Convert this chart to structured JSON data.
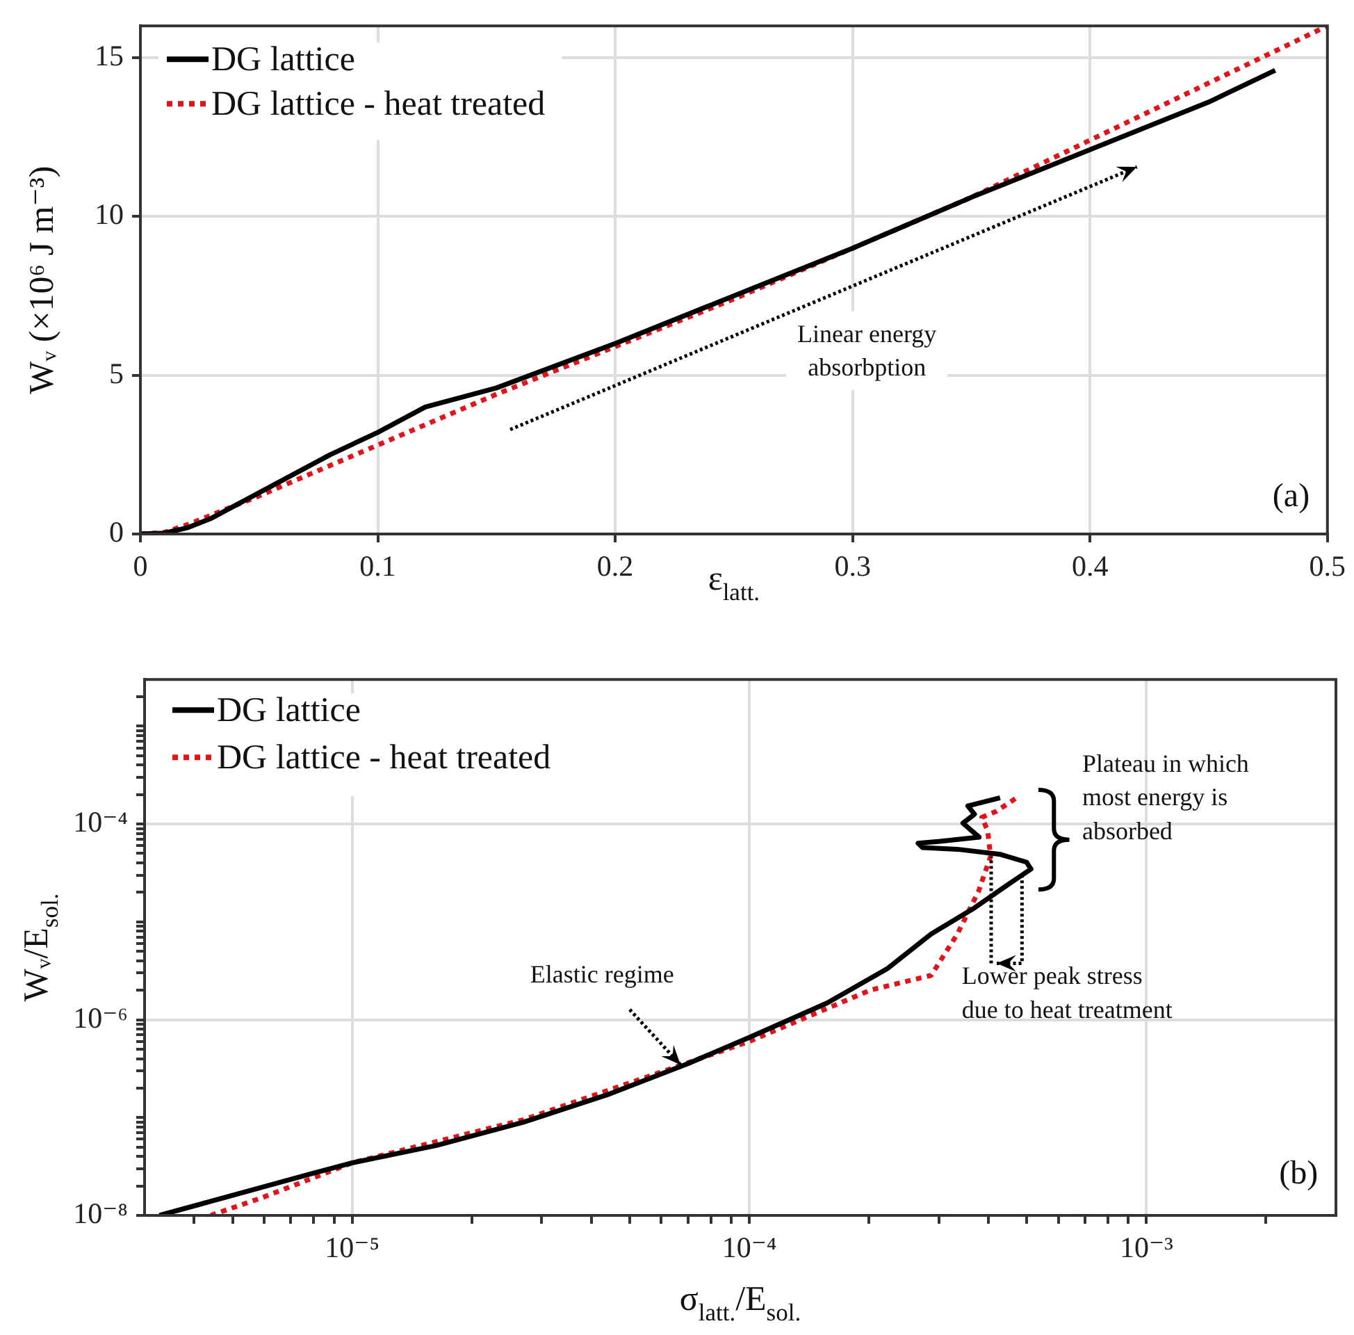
{
  "chart_data": [
    {
      "type": "line",
      "xlabel": "ε$_{latt.}$",
      "ylabel": "Wᵥ (×10⁶ J m⁻³)",
      "series": [
        {
          "name": "DG lattice",
          "color": "#000000",
          "line_style": "solid",
          "x": [
            0,
            0.01,
            0.02,
            0.03,
            0.05,
            0.08,
            0.1,
            0.12,
            0.15,
            0.2,
            0.25,
            0.3,
            0.35,
            0.4,
            0.45,
            0.478
          ],
          "values": [
            0,
            0.03,
            0.2,
            0.5,
            1.3,
            2.5,
            3.2,
            4.0,
            4.6,
            6.0,
            7.5,
            9.0,
            10.6,
            12.1,
            13.6,
            14.6
          ]
        },
        {
          "name": "DG lattice - heat treated",
          "color": "#e0141b",
          "line_style": "dotted",
          "x": [
            0,
            0.01,
            0.02,
            0.05,
            0.1,
            0.15,
            0.2,
            0.25,
            0.3,
            0.35,
            0.4,
            0.45,
            0.5
          ],
          "values": [
            0,
            0.05,
            0.3,
            1.2,
            2.8,
            4.4,
            5.9,
            7.4,
            9.0,
            10.6,
            12.4,
            14.2,
            16.0
          ]
        }
      ],
      "xlim": [
        0,
        0.5
      ],
      "xticks": [
        0,
        0.1,
        0.2,
        0.3,
        0.4,
        0.5
      ],
      "ylim": [
        0,
        16
      ],
      "yticks": [
        0,
        5,
        10,
        15
      ],
      "grid": true,
      "legend": "top left",
      "annotations": [
        "Linear energy\nabsorbption",
        "(a)"
      ]
    },
    {
      "type": "line",
      "xlabel": "σ$_{latt.}$/E$_{sol.}$",
      "ylabel": "Wᵥ/E$_{sol.}$",
      "series": [
        {
          "name": "DG lattice",
          "color": "#000000",
          "line_style": "solid",
          "x": [
            3.27e-06,
            5.96e-06,
            7.85e-06,
            1e-05,
            1.63e-05,
            2.7e-05,
            4.46e-05,
            7.02e-05,
            0.0001,
            0.000157,
            0.000223,
            0.000287,
            0.000369,
            0.000451,
            0.000512,
            0.000499,
            0.000429,
            0.000334,
            0.000273,
            0.000266,
            0.000302,
            0.000379,
            0.000345,
            0.000369,
            0.000355,
            0.000428
          ],
          "values": [
            1e-08,
            1.95e-08,
            2.65e-08,
            3.45e-08,
            5.19e-08,
            8.97e-08,
            1.75e-07,
            3.57e-07,
            6.6e-07,
            1.48e-06,
            3.34e-06,
            7.53e-06,
            1.39e-05,
            2.45e-05,
            3.46e-05,
            4.07e-05,
            4.89e-05,
            5.52e-05,
            5.75e-05,
            6.37e-05,
            6.64e-05,
            7.34e-05,
            0.000102,
            0.000126,
            0.000153,
            0.000185
          ]
        },
        {
          "name": "DG lattice - heat treated",
          "color": "#e0141b",
          "line_style": "dotted",
          "x": [
            4.4e-06,
            5.96e-06,
            1e-05,
            2.7e-05,
            0.0001,
            0.000202,
            0.000287,
            0.000334,
            0.000378,
            0.000405,
            0.000398,
            0.000385,
            0.000419,
            0.00048
          ],
          "values": [
            1e-08,
            1.53e-08,
            3.45e-08,
            9.5e-08,
            6e-07,
            2.01e-06,
            2.84e-06,
            7.5e-06,
            2.07e-05,
            4.68e-05,
            8.6e-05,
            0.000117,
            0.000135,
            0.000195
          ]
        }
      ],
      "log": "xy",
      "xlim": [
        3e-06,
        0.003
      ],
      "ylim": [
        1e-08,
        0.003
      ],
      "xticks": [
        {
          "value": 4e-06,
          "label": null
        },
        {
          "value": 5e-06,
          "label": null
        },
        {
          "value": 6e-06,
          "label": null
        },
        {
          "value": 7e-06,
          "label": null
        },
        {
          "value": 8e-06,
          "label": null
        },
        {
          "value": 9e-06,
          "label": null
        },
        {
          "value": 1e-05,
          "label": "10⁻⁵"
        },
        {
          "value": 2e-05,
          "label": null
        },
        {
          "value": 3e-05,
          "label": null
        },
        {
          "value": 4e-05,
          "label": null
        },
        {
          "value": 5e-05,
          "label": null
        },
        {
          "value": 6e-05,
          "label": null
        },
        {
          "value": 7e-05,
          "label": null
        },
        {
          "value": 8e-05,
          "label": null
        },
        {
          "value": 9e-05,
          "label": null
        },
        {
          "value": 0.0001,
          "label": "10⁻⁴"
        },
        {
          "value": 0.0002,
          "label": null
        },
        {
          "value": 0.0003,
          "label": null
        },
        {
          "value": 0.0004,
          "label": null
        },
        {
          "value": 0.0005,
          "label": null
        },
        {
          "value": 0.0006,
          "label": null
        },
        {
          "value": 0.0007,
          "label": null
        },
        {
          "value": 0.0008,
          "label": null
        },
        {
          "value": 0.0009,
          "label": null
        },
        {
          "value": 0.001,
          "label": "10⁻³"
        },
        {
          "value": 0.002,
          "label": null
        }
      ],
      "yticks": [
        {
          "value": 1e-08,
          "label": "10⁻⁸"
        },
        {
          "value": 2e-08,
          "label": null
        },
        {
          "value": 3e-08,
          "label": null
        },
        {
          "value": 4e-08,
          "label": null
        },
        {
          "value": 5e-08,
          "label": null
        },
        {
          "value": 6e-08,
          "label": null
        },
        {
          "value": 7e-08,
          "label": null
        },
        {
          "value": 8e-08,
          "label": null
        },
        {
          "value": 9e-08,
          "label": null
        },
        {
          "value": 1e-07,
          "label": null
        },
        {
          "value": 2e-07,
          "label": null
        },
        {
          "value": 3e-07,
          "label": null
        },
        {
          "value": 4e-07,
          "label": null
        },
        {
          "value": 5e-07,
          "label": null
        },
        {
          "value": 6e-07,
          "label": null
        },
        {
          "value": 7e-07,
          "label": null
        },
        {
          "value": 8e-07,
          "label": null
        },
        {
          "value": 9e-07,
          "label": null
        },
        {
          "value": 1e-06,
          "label": "10⁻⁶"
        },
        {
          "value": 2e-06,
          "label": null
        },
        {
          "value": 3e-06,
          "label": null
        },
        {
          "value": 4e-06,
          "label": null
        },
        {
          "value": 5e-06,
          "label": null
        },
        {
          "value": 6e-06,
          "label": null
        },
        {
          "value": 7e-06,
          "label": null
        },
        {
          "value": 8e-06,
          "label": null
        },
        {
          "value": 9e-06,
          "label": null
        },
        {
          "value": 1e-05,
          "label": null
        },
        {
          "value": 2e-05,
          "label": null
        },
        {
          "value": 3e-05,
          "label": null
        },
        {
          "value": 4e-05,
          "label": null
        },
        {
          "value": 5e-05,
          "label": null
        },
        {
          "value": 6e-05,
          "label": null
        },
        {
          "value": 7e-05,
          "label": null
        },
        {
          "value": 8e-05,
          "label": null
        },
        {
          "value": 9e-05,
          "label": null
        },
        {
          "value": 0.0001,
          "label": "10⁻⁴"
        },
        {
          "value": 0.0002,
          "label": null
        },
        {
          "value": 0.0003,
          "label": null
        },
        {
          "value": 0.0004,
          "label": null
        },
        {
          "value": 0.0005,
          "label": null
        },
        {
          "value": 0.0006,
          "label": null
        },
        {
          "value": 0.0007,
          "label": null
        },
        {
          "value": 0.0008,
          "label": null
        },
        {
          "value": 0.0009,
          "label": null
        },
        {
          "value": 0.001,
          "label": null
        },
        {
          "value": 0.002,
          "label": null
        }
      ],
      "grid": true,
      "legend": "top left",
      "annotations": [
        {
          "text": "Elastic regime",
          "x": 6.7e-05,
          "y": 3.5e-07
        },
        "Plateau in which\nmost energy is\nabsorbed",
        {
          "text": "Lower peak stress\ndue to heat treatment",
          "x": 0.000405,
          "y": 4.68e-05
        },
        "(b)"
      ]
    }
  ]
}
